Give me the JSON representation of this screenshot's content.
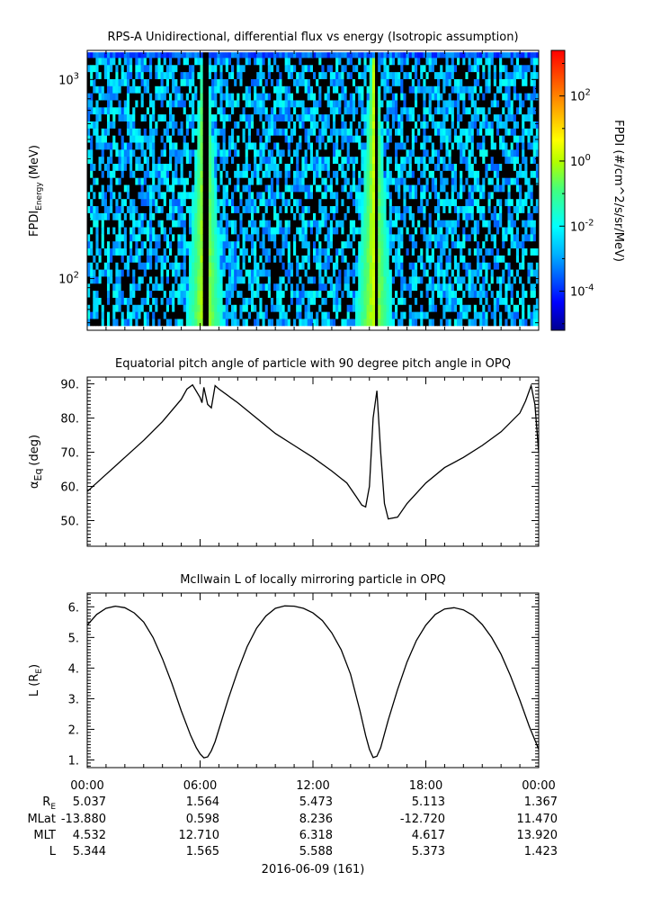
{
  "panel1": {
    "title": "RPS-A Unidirectional, differential flux vs energy (Isotropic assumption)",
    "ylabel_main": "FPDI",
    "ylabel_sub": "Energy",
    "ylabel_unit": "(MeV)",
    "yticks": [
      {
        "v": 100,
        "base": "10",
        "exp": "2"
      },
      {
        "v": 1000,
        "base": "10",
        "exp": "3"
      }
    ],
    "colorbar_label": "FPDI (#/cm^2/s/sr/MeV)",
    "colorbar_ticks": [
      {
        "base": "10",
        "exp": "2",
        "v": 2
      },
      {
        "base": "10",
        "exp": "0",
        "v": 0
      },
      {
        "base": "10",
        "exp": "-2",
        "v": -2
      },
      {
        "base": "10",
        "exp": "-4",
        "v": -4
      }
    ]
  },
  "panel2": {
    "title": "Equatorial pitch angle of particle with 90 degree pitch angle in OPQ",
    "ylabel_main": "α",
    "ylabel_sub": "Eq",
    "ylabel_unit": "(deg)",
    "yticks": [
      "50.",
      "60.",
      "70.",
      "80.",
      "90."
    ]
  },
  "panel3": {
    "title": "McIlwain L of locally mirroring particle in OPQ",
    "ylabel_main": "L (R",
    "ylabel_sub": "E",
    "ylabel_close": ")",
    "yticks": [
      "1.",
      "2.",
      "3.",
      "4.",
      "5.",
      "6."
    ]
  },
  "xaxis": {
    "ticks": [
      "00:00",
      "06:00",
      "12:00",
      "18:00",
      "00:00"
    ],
    "row_labels": [
      {
        "main": "R",
        "sub": "E"
      },
      {
        "main": "MLat",
        "sub": ""
      },
      {
        "main": "MLT",
        "sub": ""
      },
      {
        "main": "L",
        "sub": ""
      }
    ],
    "rows": [
      [
        "5.037",
        "1.564",
        "5.473",
        "5.113",
        "1.367"
      ],
      [
        "-13.880",
        "0.598",
        "8.236",
        "-12.720",
        "11.470"
      ],
      [
        "4.532",
        "12.710",
        "6.318",
        "4.617",
        "13.920"
      ],
      [
        "5.344",
        "1.565",
        "5.588",
        "5.373",
        "1.423"
      ]
    ],
    "date_label": "2016-06-09 (161)"
  },
  "chart_data": [
    {
      "type": "heatmap",
      "title": "RPS-A Unidirectional, differential flux vs energy (Isotropic assumption)",
      "xlabel": "",
      "ylabel": "FPDI Energy (MeV)",
      "y_scale": "log",
      "ylim": [
        55,
        1400
      ],
      "xlim_hours": [
        0,
        24
      ],
      "color_scale": "log",
      "zlim_log10": [
        -5.2,
        3.4
      ],
      "high_flux_crossings_hours": [
        6.25,
        15.25
      ],
      "data_gaps_hours": [
        6.3,
        15.35
      ],
      "colorbar_label": "FPDI (#/cm^2/s/sr/MeV)"
    },
    {
      "type": "line",
      "title": "Equatorial pitch angle of particle with 90 degree pitch angle in OPQ",
      "xlabel": "",
      "ylabel": "αEq (deg)",
      "ylim": [
        42.5,
        92
      ],
      "x_hours": [
        0,
        1,
        2,
        3,
        4,
        5,
        5.3,
        5.6,
        6.0,
        6.1,
        6.2,
        6.4,
        6.6,
        6.8,
        7.0,
        8.0,
        9.0,
        10.0,
        11.0,
        12.0,
        13.0,
        13.8,
        14.3,
        14.6,
        14.8,
        15.0,
        15.2,
        15.4,
        15.6,
        15.8,
        16.0,
        16.5,
        17.0,
        18.0,
        19.0,
        20.0,
        21.0,
        22.0,
        23.0,
        23.3,
        23.6,
        23.8,
        24.0
      ],
      "values": [
        58.5,
        63.5,
        68.5,
        73.5,
        79,
        85.5,
        88.5,
        89.7,
        86.0,
        84.5,
        89.0,
        84.0,
        83.0,
        89.5,
        88.5,
        84.5,
        80.0,
        75.5,
        72.0,
        68.5,
        64.5,
        61.0,
        57.0,
        54.5,
        54.0,
        60.0,
        80.0,
        88.0,
        70.0,
        55.0,
        50.5,
        51.0,
        55.0,
        61.0,
        65.5,
        68.5,
        72.0,
        76.0,
        81.5,
        85.0,
        89.5,
        84.0,
        70.0
      ]
    },
    {
      "type": "line",
      "title": "McIlwain L of locally mirroring particle in OPQ",
      "xlabel": "",
      "ylabel": "L (RE)",
      "ylim": [
        0.75,
        6.45
      ],
      "x_hours": [
        0,
        0.5,
        1.0,
        1.5,
        2.0,
        2.5,
        3.0,
        3.5,
        4.0,
        4.5,
        5.0,
        5.5,
        5.8,
        6.0,
        6.2,
        6.4,
        6.6,
        6.8,
        7.0,
        7.5,
        8.0,
        8.5,
        9.0,
        9.5,
        10.0,
        10.5,
        11.0,
        11.5,
        12.0,
        12.5,
        13.0,
        13.5,
        14.0,
        14.5,
        14.8,
        15.0,
        15.2,
        15.4,
        15.6,
        15.8,
        16.0,
        16.5,
        17.0,
        17.5,
        18.0,
        18.5,
        19.0,
        19.5,
        20.0,
        20.5,
        21.0,
        21.5,
        22.0,
        22.5,
        23.0,
        23.5,
        24.0
      ],
      "values": [
        5.4,
        5.75,
        5.95,
        6.02,
        5.97,
        5.8,
        5.5,
        5.0,
        4.3,
        3.5,
        2.6,
        1.8,
        1.4,
        1.2,
        1.07,
        1.1,
        1.3,
        1.6,
        2.0,
        3.0,
        3.9,
        4.7,
        5.3,
        5.7,
        5.95,
        6.03,
        6.02,
        5.95,
        5.8,
        5.55,
        5.15,
        4.6,
        3.8,
        2.6,
        1.8,
        1.35,
        1.08,
        1.12,
        1.4,
        1.85,
        2.3,
        3.3,
        4.2,
        4.9,
        5.4,
        5.75,
        5.93,
        5.97,
        5.9,
        5.72,
        5.42,
        5.0,
        4.45,
        3.75,
        2.95,
        2.1,
        1.35
      ]
    }
  ]
}
